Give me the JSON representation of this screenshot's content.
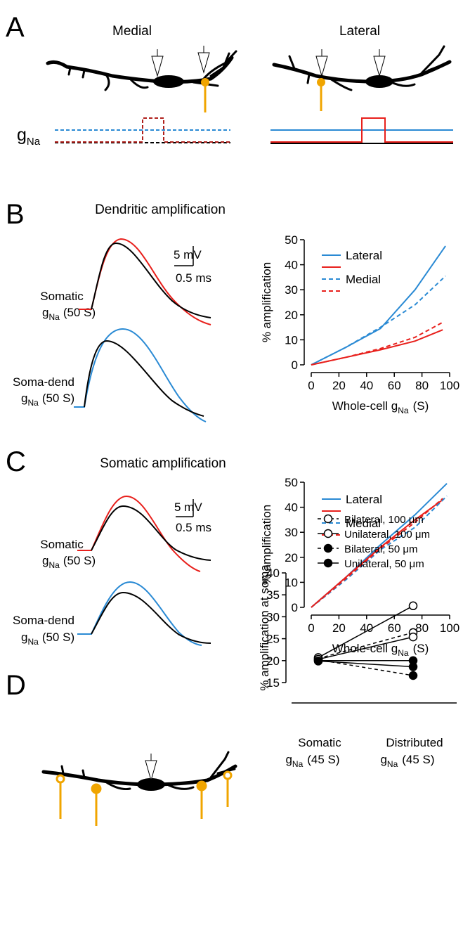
{
  "panel_a": {
    "letter": "A",
    "medial": "Medial",
    "lateral": "Lateral",
    "g_label": {
      "g": "g",
      "sub": "Na"
    }
  },
  "panel_b": {
    "letter": "B",
    "traces": [
      {
        "label": "Somatic",
        "g": "g",
        "sub": "Na",
        "value": "(50 S)"
      },
      {
        "label": "Soma-dend",
        "g": "g",
        "sub": "Na",
        "value": "(50 S)"
      }
    ],
    "scale": {
      "v": "5 mV",
      "t": "0.5 ms"
    }
  },
  "panel_c": {
    "letter": "C",
    "traces": [
      {
        "label": "Somatic",
        "g": "g",
        "sub": "Na",
        "value": "(50 S)"
      },
      {
        "label": "Soma-dend",
        "g": "g",
        "sub": "Na",
        "value": "(50 S)"
      }
    ],
    "scale": {
      "v": "5 mV",
      "t": "0.5 ms"
    }
  },
  "panel_d": {
    "letter": "D"
  },
  "chart_data": [
    {
      "type": "line",
      "title": "Dendritic amplification",
      "x_label": {
        "text": "Whole-cell g",
        "sub": "Na",
        "tail": "(S)"
      },
      "y_label": "% amplification",
      "xlim": [
        0,
        100
      ],
      "xticks": [
        0,
        20,
        40,
        60,
        80,
        100
      ],
      "ylim": [
        0,
        50
      ],
      "yticks": [
        0,
        10,
        20,
        30,
        40,
        50
      ],
      "series": [
        {
          "name": "Lateral",
          "color": "#2a8ad4",
          "dash": false,
          "x": [
            0,
            25,
            50,
            75,
            97
          ],
          "values": [
            0,
            7,
            14.5,
            30,
            47.5
          ]
        },
        {
          "name": "Lateral",
          "color": "#e8201c",
          "dash": false,
          "x": [
            0,
            25,
            50,
            75,
            95
          ],
          "values": [
            0,
            3,
            6,
            9.5,
            14
          ]
        },
        {
          "name": "Medial",
          "color": "#2a8ad4",
          "dash": true,
          "x": [
            0,
            25,
            50,
            75,
            97
          ],
          "values": [
            0,
            7,
            15,
            24,
            35.5
          ]
        },
        {
          "name": "Medial",
          "color": "#e8201c",
          "dash": true,
          "x": [
            0,
            25,
            50,
            75,
            95
          ],
          "values": [
            0,
            3,
            6.5,
            11,
            17
          ]
        }
      ]
    },
    {
      "type": "line",
      "title": "Somatic amplification",
      "x_label": {
        "text": "Whole-cell g",
        "sub": "Na",
        "tail": "(S)"
      },
      "y_label": "% amplification",
      "xlim": [
        0,
        100
      ],
      "xticks": [
        0,
        20,
        40,
        60,
        80,
        100
      ],
      "ylim": [
        0,
        50
      ],
      "yticks": [
        0,
        10,
        20,
        30,
        40,
        50
      ],
      "series": [
        {
          "name": "Lateral",
          "color": "#2a8ad4",
          "dash": false,
          "x": [
            0,
            25,
            50,
            75,
            98
          ],
          "values": [
            0,
            12,
            25,
            37,
            49.5
          ]
        },
        {
          "name": "Lateral",
          "color": "#e8201c",
          "dash": false,
          "x": [
            0,
            25,
            50,
            75,
            95
          ],
          "values": [
            0,
            12,
            24,
            35,
            43
          ]
        },
        {
          "name": "Medial",
          "color": "#2a8ad4",
          "dash": true,
          "x": [
            0,
            25,
            50,
            75,
            98
          ],
          "values": [
            0,
            11,
            23,
            32,
            44.5
          ]
        },
        {
          "name": "Medial",
          "color": "#e8201c",
          "dash": true,
          "x": [
            0,
            25,
            50,
            75,
            95
          ],
          "values": [
            0,
            11.5,
            23.5,
            34,
            43.5
          ]
        }
      ]
    },
    {
      "type": "dot",
      "y_label": "% amplification at soma",
      "categories": [
        {
          "line1": "Somatic",
          "g": "g",
          "sub": "Na",
          "value": "(45 S)"
        },
        {
          "line1": "Distributed",
          "g": "g",
          "sub": "Na",
          "value": "(45 S)"
        }
      ],
      "ylim": [
        15,
        40
      ],
      "yticks": [
        15,
        20,
        25,
        30,
        35,
        40
      ],
      "series": [
        {
          "name": "Bilateral, 100 μm",
          "color": "#000000",
          "dash": true,
          "marker": "open",
          "values": [
            20.5,
            26.4
          ]
        },
        {
          "name": "Unilateral, 100 μm",
          "color": "#000000",
          "dash": false,
          "marker": "open",
          "values": [
            20.7,
            32.5
          ]
        },
        {
          "name": "Bilateral, 50 μm",
          "color": "#000000",
          "dash": true,
          "marker": "filled",
          "values": [
            20.2,
            16.6
          ]
        },
        {
          "name": "Unilateral,  50 μm",
          "color": "#000000",
          "dash": false,
          "marker": "filled",
          "values": [
            20,
            20
          ]
        },
        {
          "color": "#000000",
          "dash": false,
          "marker": "open",
          "values": [
            20.3,
            25.4
          ]
        },
        {
          "color": "#000000",
          "dash": false,
          "marker": "filled",
          "values": [
            19.9,
            18.6
          ]
        }
      ]
    }
  ]
}
